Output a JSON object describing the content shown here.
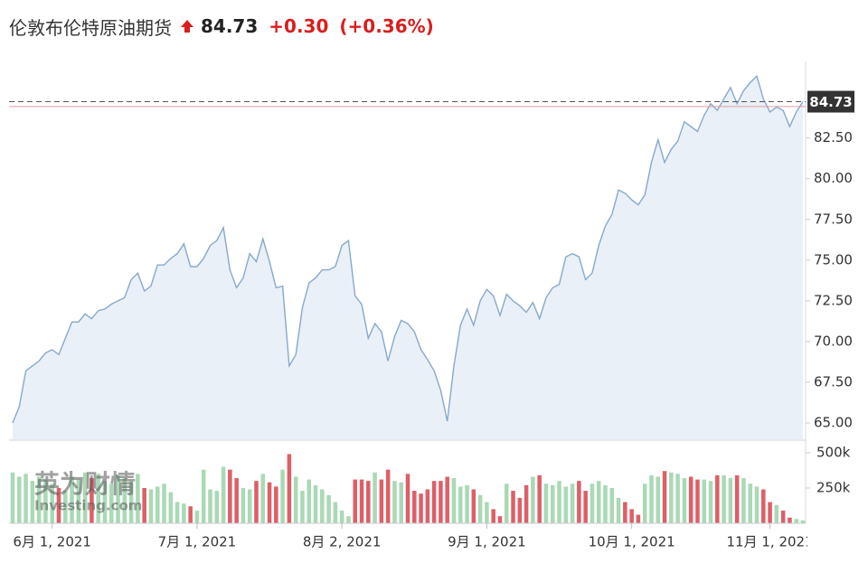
{
  "header": {
    "title": "伦敦布伦特原油期货",
    "change": "+0.30",
    "change_pct": "(+0.36%)"
  },
  "watermark": [
    "英为财情",
    "Investing.com"
  ],
  "chart_data": {
    "type": "line",
    "x": [
      "2021-05-24",
      "2021-05-25",
      "2021-05-26",
      "2021-05-27",
      "2021-05-28",
      "2021-05-31",
      "2021-06-01",
      "2021-06-02",
      "2021-06-03",
      "2021-06-04",
      "2021-06-07",
      "2021-06-08",
      "2021-06-09",
      "2021-06-10",
      "2021-06-11",
      "2021-06-14",
      "2021-06-15",
      "2021-06-16",
      "2021-06-17",
      "2021-06-18",
      "2021-06-21",
      "2021-06-22",
      "2021-06-23",
      "2021-06-24",
      "2021-06-25",
      "2021-06-28",
      "2021-06-29",
      "2021-06-30",
      "2021-07-01",
      "2021-07-02",
      "2021-07-05",
      "2021-07-06",
      "2021-07-07",
      "2021-07-08",
      "2021-07-09",
      "2021-07-12",
      "2021-07-13",
      "2021-07-14",
      "2021-07-15",
      "2021-07-16",
      "2021-07-19",
      "2021-07-20",
      "2021-07-21",
      "2021-07-22",
      "2021-07-23",
      "2021-07-26",
      "2021-07-27",
      "2021-07-28",
      "2021-07-29",
      "2021-07-30",
      "2021-08-02",
      "2021-08-03",
      "2021-08-04",
      "2021-08-05",
      "2021-08-06",
      "2021-08-09",
      "2021-08-10",
      "2021-08-11",
      "2021-08-12",
      "2021-08-13",
      "2021-08-16",
      "2021-08-17",
      "2021-08-18",
      "2021-08-19",
      "2021-08-20",
      "2021-08-23",
      "2021-08-24",
      "2021-08-25",
      "2021-08-26",
      "2021-08-27",
      "2021-08-30",
      "2021-08-31",
      "2021-09-01",
      "2021-09-02",
      "2021-09-03",
      "2021-09-06",
      "2021-09-07",
      "2021-09-08",
      "2021-09-09",
      "2021-09-10",
      "2021-09-13",
      "2021-09-14",
      "2021-09-15",
      "2021-09-16",
      "2021-09-17",
      "2021-09-20",
      "2021-09-21",
      "2021-09-22",
      "2021-09-23",
      "2021-09-24",
      "2021-09-27",
      "2021-09-28",
      "2021-09-29",
      "2021-09-30",
      "2021-10-01",
      "2021-10-04",
      "2021-10-05",
      "2021-10-06",
      "2021-10-07",
      "2021-10-08",
      "2021-10-11",
      "2021-10-12",
      "2021-10-13",
      "2021-10-14",
      "2021-10-15",
      "2021-10-18",
      "2021-10-19",
      "2021-10-20",
      "2021-10-21",
      "2021-10-22",
      "2021-10-25",
      "2021-10-26",
      "2021-10-27",
      "2021-10-28",
      "2021-10-29",
      "2021-11-01",
      "2021-11-02",
      "2021-11-03",
      "2021-11-04",
      "2021-11-05",
      "2021-11-08"
    ],
    "series": [
      {
        "type": "area",
        "color": "#86a9cb",
        "fill": "#e9f0f8",
        "values": [
          65.0,
          66.0,
          68.2,
          68.5,
          68.8,
          69.3,
          69.5,
          69.2,
          70.2,
          71.2,
          71.2,
          71.7,
          71.4,
          71.9,
          72.0,
          72.3,
          72.5,
          72.7,
          73.8,
          74.2,
          73.1,
          73.4,
          74.7,
          74.7,
          75.1,
          75.4,
          76.0,
          74.6,
          74.6,
          75.1,
          75.9,
          76.2,
          77.0,
          74.4,
          73.3,
          73.9,
          75.4,
          74.9,
          76.3,
          74.9,
          73.3,
          73.4,
          68.5,
          69.2,
          72.1,
          73.6,
          73.9,
          74.4,
          74.4,
          74.6,
          75.9,
          76.2,
          72.8,
          72.3,
          70.2,
          71.1,
          70.6,
          68.8,
          70.3,
          71.3,
          71.1,
          70.6,
          69.5,
          68.9,
          68.2,
          67.0,
          65.1,
          68.5,
          71.0,
          72.0,
          71.0,
          72.5,
          73.2,
          72.8,
          71.6,
          72.9,
          72.5,
          72.2,
          71.8,
          72.4,
          71.4,
          72.7,
          73.3,
          73.5,
          75.2,
          75.4,
          75.2,
          73.8,
          74.2,
          75.9,
          77.1,
          77.8,
          79.3,
          79.1,
          78.7,
          78.4,
          79.0,
          81.0,
          82.4,
          81.0,
          81.8,
          82.3,
          83.5,
          83.2,
          82.9,
          83.9,
          84.6,
          84.2,
          84.9,
          85.6,
          84.6,
          85.4,
          85.9,
          86.3,
          84.9,
          84.1,
          84.4,
          84.2,
          83.2,
          84.1,
          84.73
        ]
      },
      {
        "type": "bar",
        "axis": "y2",
        "up_color": "#a9d9b5",
        "down_color": "#dd5f68",
        "values": [
          360000,
          330000,
          350000,
          300000,
          330000,
          310000,
          280000,
          250000,
          230000,
          330000,
          310000,
          360000,
          320000,
          350000,
          300000,
          280000,
          340000,
          320000,
          300000,
          350000,
          250000,
          240000,
          260000,
          280000,
          220000,
          150000,
          140000,
          120000,
          90000,
          380000,
          240000,
          230000,
          400000,
          380000,
          320000,
          250000,
          240000,
          300000,
          350000,
          290000,
          260000,
          380000,
          490000,
          330000,
          230000,
          310000,
          270000,
          240000,
          200000,
          150000,
          90000,
          50000,
          310000,
          310000,
          300000,
          360000,
          310000,
          380000,
          300000,
          290000,
          350000,
          230000,
          210000,
          240000,
          300000,
          300000,
          330000,
          320000,
          260000,
          270000,
          240000,
          200000,
          150000,
          100000,
          50000,
          280000,
          230000,
          180000,
          270000,
          330000,
          340000,
          280000,
          270000,
          300000,
          260000,
          280000,
          300000,
          230000,
          280000,
          300000,
          270000,
          250000,
          180000,
          150000,
          100000,
          60000,
          280000,
          340000,
          330000,
          370000,
          360000,
          350000,
          320000,
          330000,
          310000,
          310000,
          300000,
          340000,
          340000,
          320000,
          340000,
          320000,
          280000,
          260000,
          240000,
          150000,
          130000,
          90000,
          40000,
          30000,
          20000
        ]
      }
    ],
    "ylim": [
      64.0,
      87.2
    ],
    "yticks": [
      {
        "value": 65,
        "label": "65.00"
      },
      {
        "value": 67.5,
        "label": "67.50"
      },
      {
        "value": 70,
        "label": "70.00"
      },
      {
        "value": 72.5,
        "label": "72.50"
      },
      {
        "value": 75,
        "label": "75.00"
      },
      {
        "value": 77.5,
        "label": "77.50"
      },
      {
        "value": 80,
        "label": "80.00"
      },
      {
        "value": 82.5,
        "label": "82.50"
      }
    ],
    "y2lim": [
      0,
      570000
    ],
    "y2ticks": [
      {
        "value": 250000,
        "label": "250k"
      },
      {
        "value": 500000,
        "label": "500k"
      }
    ],
    "xticks": [
      {
        "value": "2021-06-01",
        "label": "6月 1, 2021"
      },
      {
        "value": "2021-07-01",
        "label": "7月 1, 2021"
      },
      {
        "value": "2021-08-02",
        "label": "8月 2, 2021"
      },
      {
        "value": "2021-09-01",
        "label": "9月 1, 2021"
      },
      {
        "value": "2021-10-01",
        "label": "10月 1, 2021"
      },
      {
        "value": "2021-11-01",
        "label": "11月 1, 2021"
      }
    ],
    "last_value": 84.73,
    "prev_close": 84.43,
    "grid": false
  }
}
